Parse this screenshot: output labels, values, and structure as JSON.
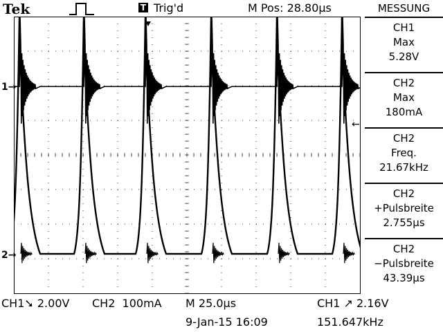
{
  "header": {
    "brand": "Tek",
    "trigger_badge": "T",
    "trigger_status": "Trig'd",
    "m_pos": "M Pos: 28.80µs"
  },
  "measure_panel": {
    "title": "MESSUNG",
    "items": [
      {
        "channel": "CH1",
        "type": "Max",
        "value": "5.28V"
      },
      {
        "channel": "CH2",
        "type": "Max",
        "value": "180mA"
      },
      {
        "channel": "CH2",
        "type": "Freq.",
        "value": "21.67kHz"
      },
      {
        "channel": "CH2",
        "type": "+Pulsbreite",
        "value": "2.755µs"
      },
      {
        "channel": "CH2",
        "type": "−Pulsbreite",
        "value": "43.39µs"
      }
    ]
  },
  "footer": {
    "ch1_scale": "CH1➘ 2.00V",
    "ch2_scale": "CH2  100mA",
    "timebase": "M 25.0µs",
    "trigger_info": "CH1 ↗ 2.16V",
    "date_time": "9-Jan-15 16:09",
    "trigger_freq": "151.647kHz"
  },
  "markers": {
    "ch1": "1→",
    "ch2": "2→",
    "trigger_level": "←"
  },
  "colors": {
    "background": "#ffffff",
    "trace": "#000000",
    "grid": "#000000"
  }
}
